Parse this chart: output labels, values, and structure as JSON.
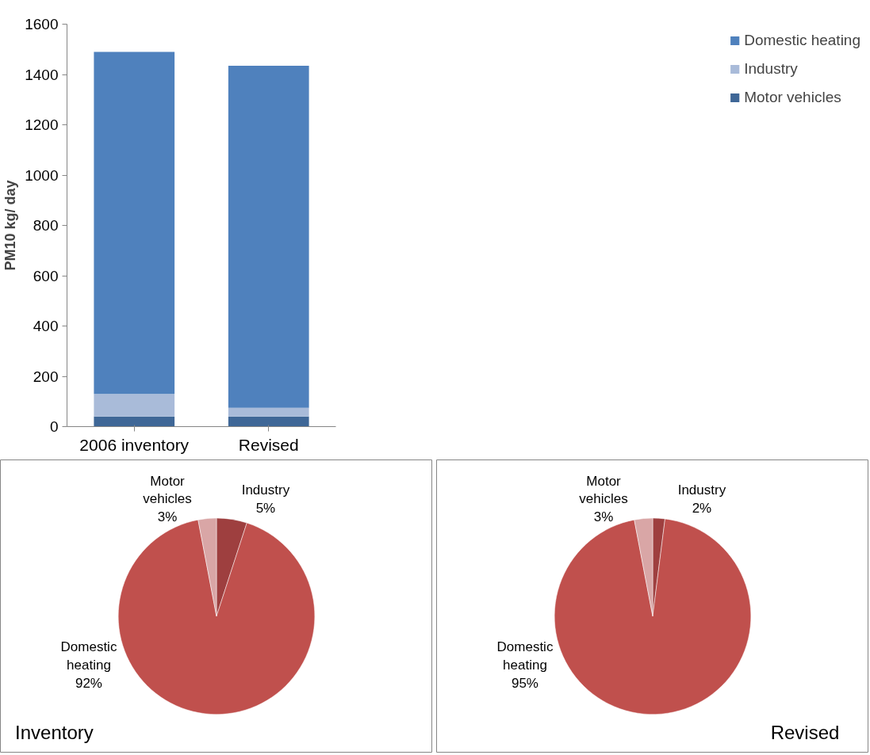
{
  "chart_data": [
    {
      "type": "bar",
      "stacked": true,
      "ylabel": "PM10 kg/ day",
      "categories": [
        "2006 inventory",
        "Revised"
      ],
      "ylim": [
        0,
        1600
      ],
      "yticks": [
        0,
        200,
        400,
        600,
        800,
        1000,
        1200,
        1400,
        1600
      ],
      "grid": false,
      "legend": "right",
      "series": [
        {
          "name": "Motor vehicles",
          "color": "#3f6797",
          "values": [
            40,
            40
          ]
        },
        {
          "name": "Industry",
          "color": "#a9bbd9",
          "values": [
            90,
            35
          ]
        },
        {
          "name": "Domestic heating",
          "color": "#4f81bd",
          "values": [
            1360,
            1360
          ]
        }
      ]
    },
    {
      "type": "pie",
      "title": "Inventory",
      "categories": [
        "Industry",
        "Domestic heating",
        "Motor vehicles"
      ],
      "values": [
        5,
        92,
        3
      ],
      "value_labels": [
        "5%",
        "92%",
        "3%"
      ],
      "colors": [
        "#9e3f3f",
        "#c0504d",
        "#d9a6a6"
      ]
    },
    {
      "type": "pie",
      "title": "Revised",
      "categories": [
        "Industry",
        "Domestic heating",
        "Motor vehicles"
      ],
      "values": [
        2,
        95,
        3
      ],
      "value_labels": [
        "2%",
        "95%",
        "3%"
      ],
      "colors": [
        "#9e3f3f",
        "#c0504d",
        "#d9a6a6"
      ]
    }
  ]
}
